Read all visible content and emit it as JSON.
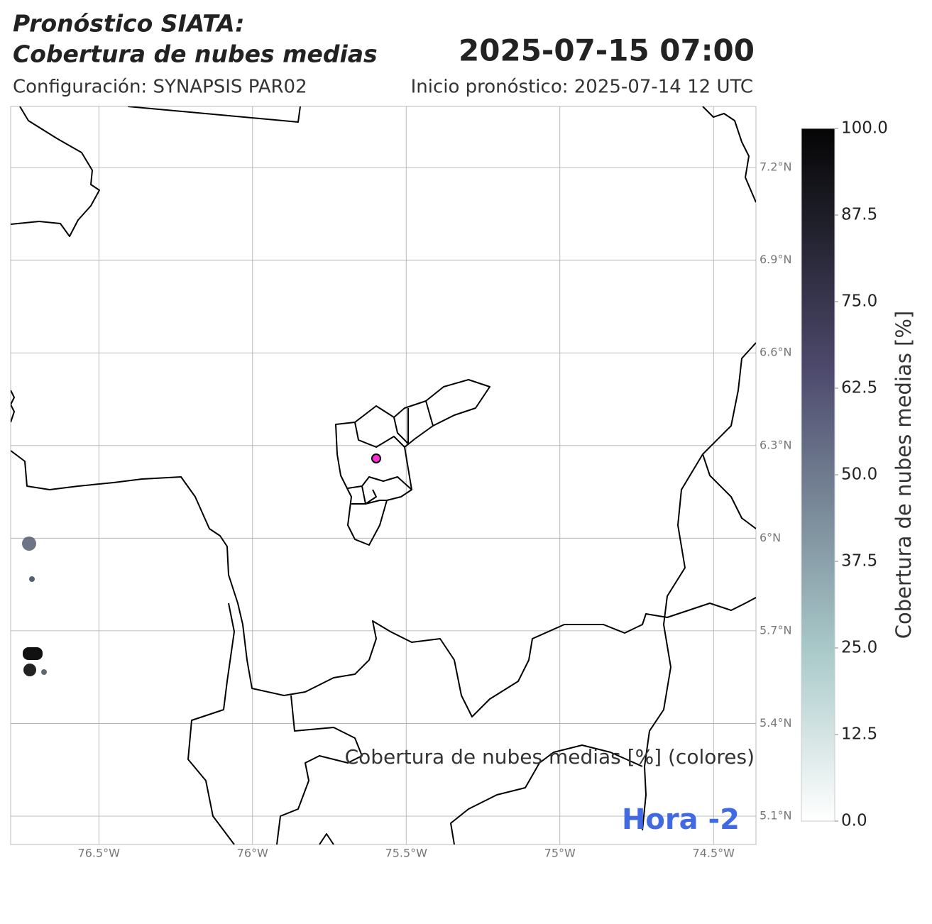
{
  "header": {
    "title_line1": "Pronóstico SIATA:",
    "title_line2": "Cobertura de nubes medias",
    "valid_time": "2025-07-15 07:00",
    "configuration": "Configuración: SYNAPSIS PAR02",
    "forecast_start": "Inicio pronóstico: 2025-07-14 12 UTC"
  },
  "map": {
    "xlim": [
      -76.787,
      -74.362
    ],
    "ylim": [
      5.008,
      7.398
    ],
    "lat_ticks": [
      {
        "value": 7.2,
        "label": "7.2°N"
      },
      {
        "value": 6.9,
        "label": "6.9°N"
      },
      {
        "value": 6.6,
        "label": "6.6°N"
      },
      {
        "value": 6.3,
        "label": "6.3°N"
      },
      {
        "value": 6.0,
        "label": "6°N"
      },
      {
        "value": 5.7,
        "label": "5.7°N"
      },
      {
        "value": 5.4,
        "label": "5.4°N"
      },
      {
        "value": 5.1,
        "label": "5.1°N"
      }
    ],
    "lon_ticks": [
      {
        "value": -76.5,
        "label": "76.5°W"
      },
      {
        "value": -76.0,
        "label": "76°W"
      },
      {
        "value": -75.5,
        "label": "75.5°W"
      },
      {
        "value": -75.0,
        "label": "75°W"
      },
      {
        "value": -74.5,
        "label": "74.5°W"
      }
    ],
    "hour_label": "Hora -2"
  },
  "colorbar": {
    "label": "Cobertura de nubes medias [%]",
    "range": [
      0,
      100
    ],
    "ticks": [
      {
        "value": 0,
        "label": "0.0"
      },
      {
        "value": 12.5,
        "label": "12.5"
      },
      {
        "value": 25,
        "label": "25.0"
      },
      {
        "value": 37.5,
        "label": "37.5"
      },
      {
        "value": 50,
        "label": "50.0"
      },
      {
        "value": 62.5,
        "label": "62.5"
      },
      {
        "value": 75,
        "label": "75.0"
      },
      {
        "value": 87.5,
        "label": "87.5"
      },
      {
        "value": 100,
        "label": "100.0"
      }
    ]
  },
  "footer": "Cobertura de nubes medias [%] (colores)"
}
